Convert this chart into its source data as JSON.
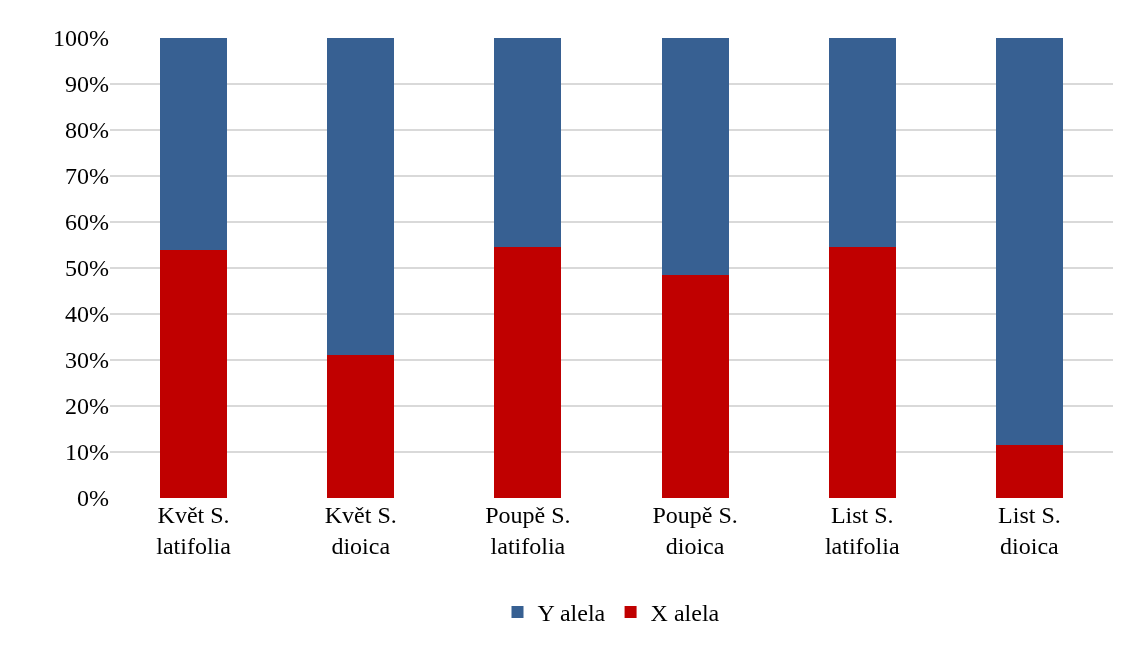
{
  "chart_data": {
    "type": "bar",
    "stacked": true,
    "categories": [
      "Květ S. latifolia",
      "Květ S. dioica",
      "Poupě S. latifolia",
      "Poupě S. dioica",
      "List S. latifolia",
      "List S. dioica"
    ],
    "series": [
      {
        "name": "X alela",
        "color": "#c00000",
        "values": [
          54,
          31,
          54.5,
          48.5,
          54.5,
          11.5
        ]
      },
      {
        "name": "Y alela",
        "color": "#376092",
        "values": [
          46,
          69,
          45.5,
          51.5,
          45.5,
          88.5
        ]
      }
    ],
    "ylim": [
      0,
      100
    ],
    "yticks": [
      {
        "value": 0,
        "label": "0%"
      },
      {
        "value": 10,
        "label": "10%"
      },
      {
        "value": 20,
        "label": "20%"
      },
      {
        "value": 30,
        "label": "30%"
      },
      {
        "value": 40,
        "label": "40%"
      },
      {
        "value": 50,
        "label": "50%"
      },
      {
        "value": 60,
        "label": "60%"
      },
      {
        "value": 70,
        "label": "70%"
      },
      {
        "value": 80,
        "label": "80%"
      },
      {
        "value": 90,
        "label": "90%"
      },
      {
        "value": 100,
        "label": "100%"
      }
    ],
    "grid": "y",
    "legend": "bottom"
  }
}
